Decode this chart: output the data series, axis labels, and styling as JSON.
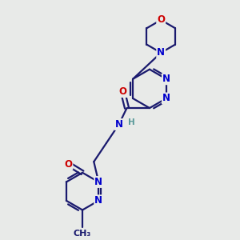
{
  "bg_color": "#e8eae8",
  "bond_color": "#1a1a6e",
  "bond_width": 1.6,
  "o_color": "#cc0000",
  "n_color": "#0000cc",
  "h_color": "#5a9a9a",
  "font_size": 8.5,
  "fig_size": [
    3.0,
    3.0
  ],
  "dpi": 100,
  "xlim": [
    0,
    10
  ],
  "ylim": [
    0,
    10
  ]
}
